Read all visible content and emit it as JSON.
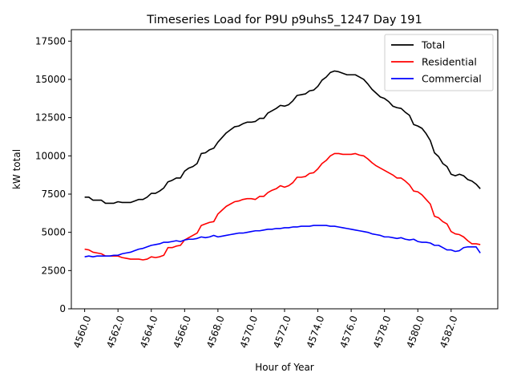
{
  "chart_data": {
    "type": "line",
    "title": "Timeseries Load for P9U p9uhs5_1247  Day 191",
    "xlabel": "Hour of Year",
    "ylabel": "kW total",
    "xlim": [
      4559.2,
      4584.8
    ],
    "ylim": [
      0,
      18250
    ],
    "x_ticks": [
      4560,
      4562,
      4564,
      4566,
      4568,
      4570,
      4572,
      4574,
      4576,
      4578,
      4580,
      4582
    ],
    "x_tick_labels": [
      "4560.0",
      "4562.0",
      "4564.0",
      "4566.0",
      "4568.0",
      "4570.0",
      "4572.0",
      "4574.0",
      "4576.0",
      "4578.0",
      "4580.0",
      "4582.0"
    ],
    "y_ticks": [
      0,
      2500,
      5000,
      7500,
      10000,
      12500,
      15000,
      17500
    ],
    "y_tick_labels": [
      "0",
      "2500",
      "5000",
      "7500",
      "10000",
      "12500",
      "15000",
      "17500"
    ],
    "legend_position": "top-right",
    "grid": false,
    "x_start": 4560,
    "x_step": 0.25,
    "series": [
      {
        "name": "Total",
        "color": "#000000",
        "values": [
          7300,
          7300,
          7100,
          7100,
          7100,
          6900,
          6900,
          6900,
          7000,
          6950,
          6950,
          6950,
          7050,
          7150,
          7150,
          7300,
          7550,
          7550,
          7700,
          7900,
          8300,
          8400,
          8550,
          8550,
          9000,
          9200,
          9300,
          9500,
          10150,
          10200,
          10400,
          10500,
          10900,
          11200,
          11500,
          11700,
          11900,
          11950,
          12100,
          12200,
          12200,
          12250,
          12450,
          12450,
          12800,
          12950,
          13100,
          13300,
          13250,
          13350,
          13600,
          13950,
          14000,
          14050,
          14250,
          14300,
          14550,
          14950,
          15150,
          15450,
          15550,
          15500,
          15400,
          15300,
          15300,
          15300,
          15150,
          15000,
          14700,
          14350,
          14100,
          13850,
          13750,
          13550,
          13250,
          13150,
          13100,
          12850,
          12650,
          12050,
          11950,
          11800,
          11450,
          11000,
          10200,
          9950,
          9500,
          9300,
          8800,
          8700,
          8800,
          8700,
          8450,
          8350,
          8150,
          7850
        ]
      },
      {
        "name": "Residential",
        "color": "#ff0000",
        "values": [
          3900,
          3850,
          3700,
          3650,
          3600,
          3450,
          3450,
          3450,
          3450,
          3350,
          3300,
          3250,
          3250,
          3250,
          3200,
          3250,
          3400,
          3350,
          3400,
          3500,
          4000,
          4000,
          4100,
          4150,
          4500,
          4650,
          4800,
          4950,
          5450,
          5550,
          5650,
          5700,
          6200,
          6450,
          6700,
          6850,
          7000,
          7050,
          7150,
          7200,
          7200,
          7150,
          7350,
          7350,
          7600,
          7750,
          7850,
          8050,
          7950,
          8050,
          8250,
          8600,
          8600,
          8650,
          8850,
          8900,
          9150,
          9500,
          9700,
          10000,
          10150,
          10150,
          10100,
          10100,
          10100,
          10150,
          10050,
          10000,
          9800,
          9550,
          9350,
          9200,
          9050,
          8900,
          8750,
          8550,
          8550,
          8350,
          8100,
          7700,
          7650,
          7450,
          7150,
          6850,
          6050,
          5950,
          5700,
          5550,
          5050,
          4900,
          4850,
          4700,
          4450,
          4250,
          4250,
          4200
        ]
      },
      {
        "name": "Commercial",
        "color": "#0000ff",
        "values": [
          3400,
          3450,
          3400,
          3450,
          3450,
          3450,
          3450,
          3500,
          3500,
          3600,
          3650,
          3700,
          3800,
          3900,
          3950,
          4050,
          4150,
          4200,
          4250,
          4350,
          4350,
          4400,
          4450,
          4400,
          4500,
          4550,
          4550,
          4600,
          4700,
          4650,
          4700,
          4800,
          4700,
          4750,
          4800,
          4850,
          4900,
          4950,
          4950,
          5000,
          5050,
          5100,
          5100,
          5150,
          5200,
          5200,
          5250,
          5250,
          5300,
          5300,
          5350,
          5350,
          5400,
          5400,
          5400,
          5450,
          5450,
          5450,
          5450,
          5400,
          5400,
          5350,
          5300,
          5250,
          5200,
          5150,
          5100,
          5050,
          5000,
          4900,
          4850,
          4800,
          4700,
          4700,
          4650,
          4600,
          4650,
          4550,
          4500,
          4550,
          4400,
          4350,
          4350,
          4300,
          4150,
          4150,
          4000,
          3850,
          3850,
          3750,
          3800,
          4000,
          4050,
          4050,
          4050,
          3650
        ]
      }
    ]
  }
}
